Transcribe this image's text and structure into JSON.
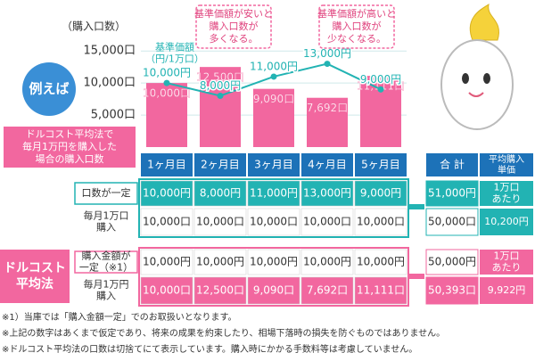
{
  "chart_data": {
    "type": "bar",
    "y_label": "（購入口数）",
    "categories": [
      "1ヶ月目",
      "2ヶ月目",
      "3ヶ月目",
      "4ヶ月目",
      "5ヶ月目"
    ],
    "ylim": [
      0,
      16000
    ],
    "yticks": [
      {
        "value": 5000,
        "label": "5,000口"
      },
      {
        "value": 10000,
        "label": "10,000口"
      },
      {
        "value": 15000,
        "label": "15,000口"
      }
    ],
    "grid": true,
    "series": [
      {
        "type": "bar",
        "color": "#f2679f",
        "values": [
          10000,
          12500,
          9090,
          7692,
          11111
        ],
        "value_labels": [
          "10,000口",
          "12,500口",
          "9,090口",
          "7,692口",
          "11,111口"
        ]
      },
      {
        "type": "line",
        "name": [
          "基準価額",
          "（円/1万口）"
        ],
        "color": "#22b3b3",
        "values": [
          10000,
          8000,
          11000,
          13000,
          9000
        ],
        "value_labels": [
          "10,000円",
          "8,000円",
          "11,000円",
          "13,000円",
          "9,000円"
        ]
      }
    ],
    "annotations": [
      [
        "基準価額が安いと",
        "購入口数が",
        "多くなる。"
      ],
      [
        "基準価額が高いと",
        "購入口数が",
        "少なくなる。"
      ]
    ],
    "badge": "例えば",
    "caption": [
      "ドルコスト平均法で",
      "毎月1万円を購入した",
      "場合の購入口数"
    ]
  },
  "table": {
    "total_header": [
      "合 計"
    ],
    "avg_header": [
      "平均購入",
      "単価"
    ],
    "side_label": [
      "ドルコスト",
      "平均法"
    ],
    "rows": [
      {
        "label": [
          "口数が一定"
        ],
        "cells": [
          "10,000円",
          "8,000円",
          "11,000円",
          "13,000円",
          "9,000円"
        ],
        "total": "51,000円",
        "avg": [
          "1万口",
          "あたり"
        ]
      },
      {
        "label": [
          "毎月1万口",
          "購入"
        ],
        "cells": [
          "10,000口",
          "10,000口",
          "10,000口",
          "10,000口",
          "10,000口"
        ],
        "total": "50,000口",
        "avg": [
          "10,200円"
        ]
      },
      {
        "label": [
          "購入金額が",
          "一定（※1）"
        ],
        "cells": [
          "10,000円",
          "10,000円",
          "10,000円",
          "10,000円",
          "10,000円"
        ],
        "total": "50,000円",
        "avg": [
          "1万口",
          "あたり"
        ]
      },
      {
        "label": [
          "毎月1万円",
          "購入"
        ],
        "cells": [
          "10,000口",
          "12,500口",
          "9,090口",
          "7,692口",
          "11,111口"
        ],
        "total": "50,393口",
        "avg": [
          "9,922円"
        ]
      }
    ]
  },
  "notes": [
    "※1）当庫では「購入金額一定」でのお取扱いとなります。",
    "※上記の数字はあくまで仮定であり、将来の成果を約束したり、相場下落時の損失を防ぐものではありません。",
    "※ドルコスト平均法の口数は切捨てにて表示しています。購入時にかかる手数料等は考慮していません。"
  ]
}
